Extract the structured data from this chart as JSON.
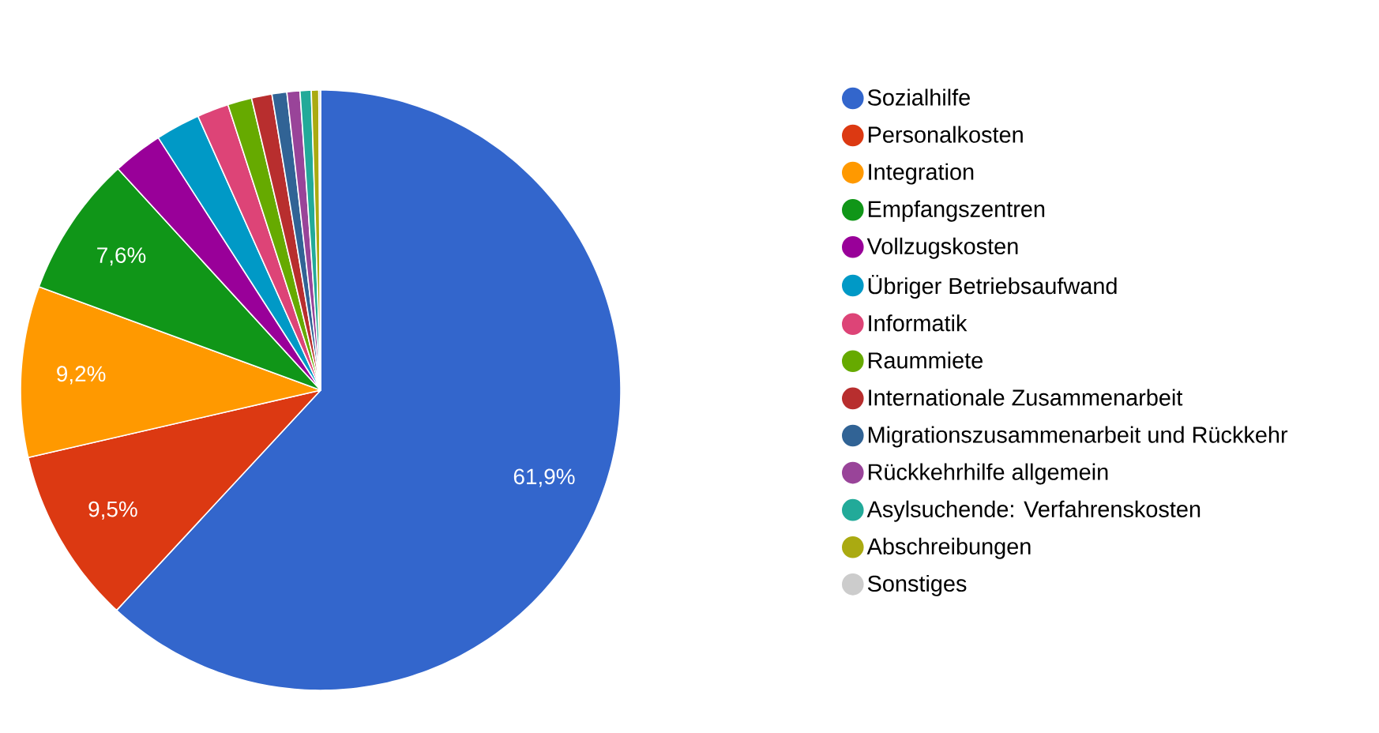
{
  "chart_data": {
    "type": "pie",
    "categories": [
      "Sozialhilfe",
      "Personalkosten",
      "Integration",
      "Empfangszentren",
      "Vollzugskosten",
      "Übriger Betriebsaufwand",
      "Informatik",
      "Raummiete",
      "Internationale Zusammenarbeit",
      "Migrationszusammenarbeit und Rückkehr",
      "Rückkehrhilfe allgemein",
      "Asylsuchende: Verfahrenskosten",
      "Abschreibungen",
      "Sonstiges"
    ],
    "values": [
      61.9,
      9.5,
      9.2,
      7.6,
      2.7,
      2.4,
      1.7,
      1.3,
      1.1,
      0.8,
      0.7,
      0.6,
      0.4,
      0.1
    ],
    "value_labels": [
      "61,9%",
      "9,5%",
      "9,2%",
      "7,6%",
      null,
      null,
      null,
      null,
      null,
      null,
      null,
      null,
      null,
      null
    ],
    "colors": [
      "#3366cc",
      "#dc3912",
      "#ff9900",
      "#109618",
      "#990099",
      "#0099c6",
      "#dd4477",
      "#66aa00",
      "#b82e2e",
      "#316395",
      "#994499",
      "#22aa99",
      "#aaaa11",
      "#cccccc"
    ],
    "legend": "right"
  }
}
